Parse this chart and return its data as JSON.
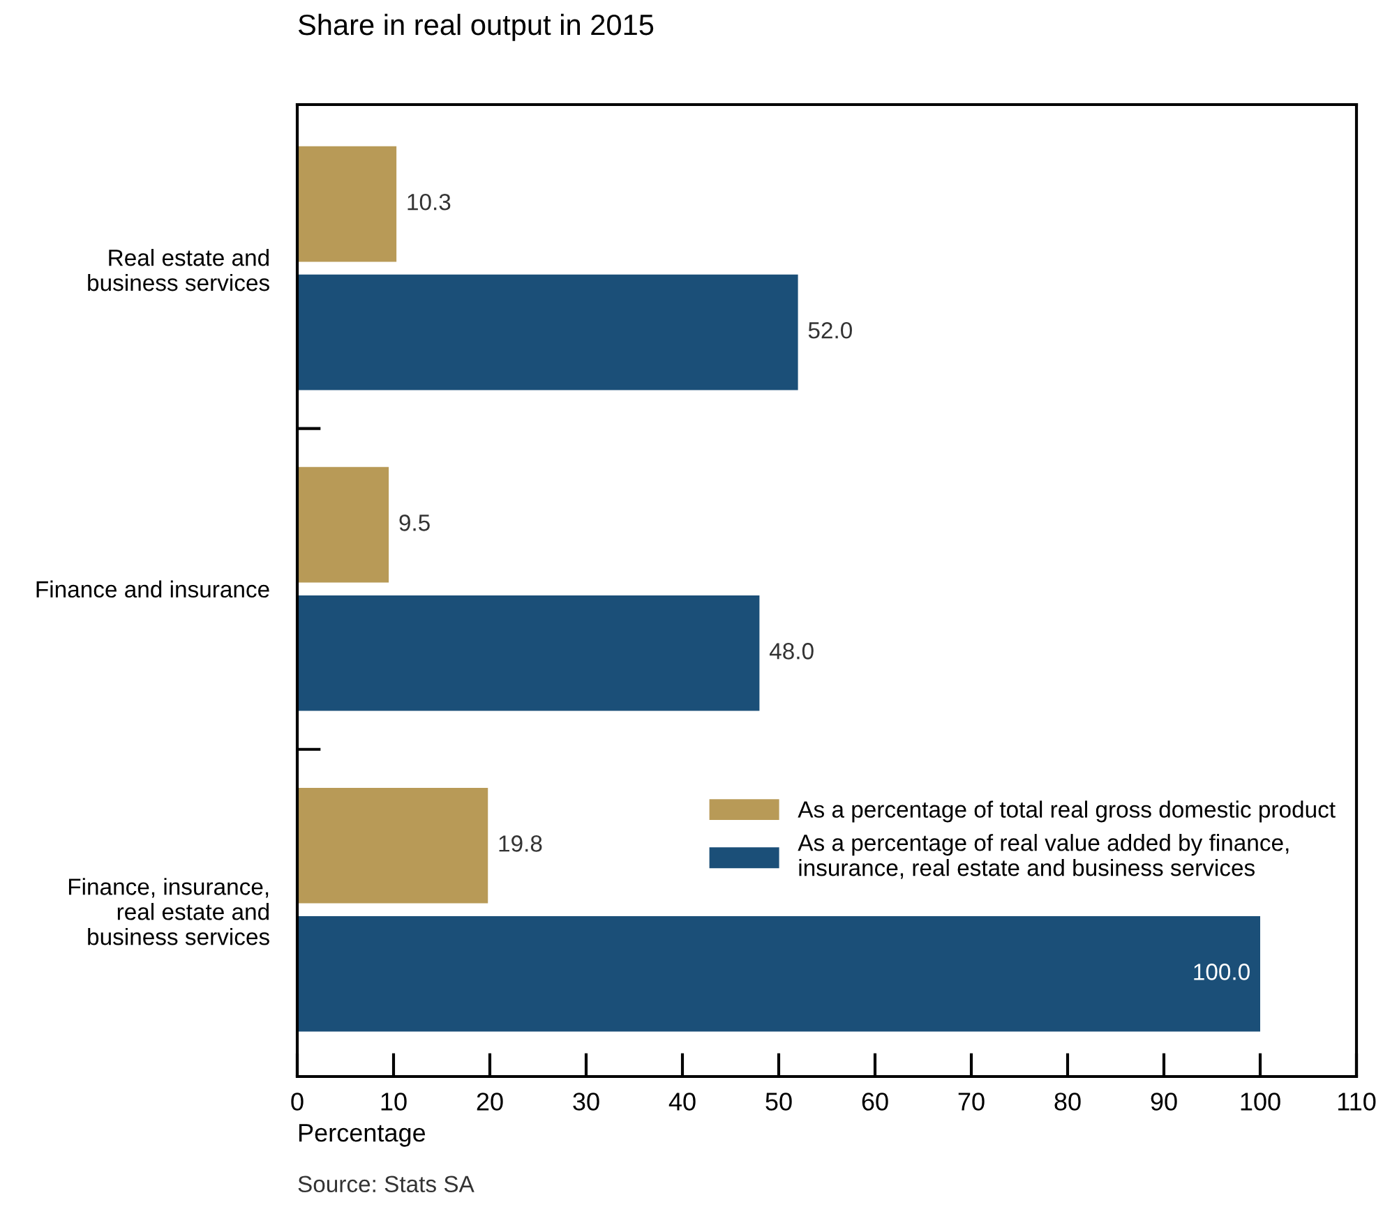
{
  "chart_data": {
    "type": "bar",
    "orientation": "horizontal",
    "title": "Share in real output in 2015",
    "xlabel": "Percentage",
    "categories": [
      "Real estate and\nbusiness services",
      "Finance and insurance",
      "Finance, insurance,\nreal estate and\nbusiness services"
    ],
    "series": [
      {
        "name": "As a percentage of total real gross domestic product",
        "color": "#b89a57",
        "values": [
          10.3,
          9.5,
          19.8
        ],
        "value_labels": [
          "10.3",
          "9.5",
          "19.8"
        ]
      },
      {
        "name": "As a percentage of real value added by finance,\ninsurance, real estate and business services",
        "color": "#1b4f78",
        "values": [
          52.0,
          48.0,
          100.0
        ],
        "value_labels": [
          "52.0",
          "48.0",
          "100.0"
        ]
      }
    ],
    "xlim": [
      0,
      110
    ],
    "xticks": [
      0,
      10,
      20,
      30,
      40,
      50,
      60,
      70,
      80,
      90,
      100,
      110
    ],
    "legend": "bottom right",
    "grid": false,
    "annotations": [
      "Source: Stats SA"
    ]
  }
}
